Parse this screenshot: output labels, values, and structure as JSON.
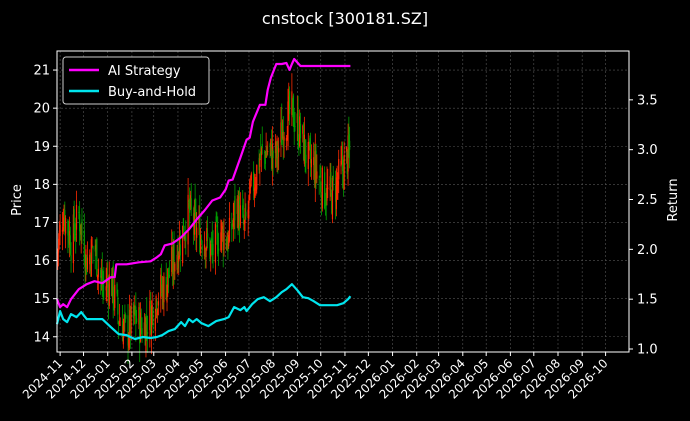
{
  "chart_data": {
    "type": "line",
    "title": "cnstock [300181.SZ]",
    "ylabel_left": "Price",
    "ylabel_right": "Return",
    "grid": true,
    "legend_position": "top-left",
    "xlim": [
      "2024-10-28",
      "2026-10-31"
    ],
    "ylim_left": [
      13.6,
      21.5
    ],
    "ylim_right": [
      0.97,
      3.99
    ],
    "x_ticks": [
      "2024-11",
      "2024-12",
      "2025-01",
      "2025-02",
      "2025-03",
      "2025-04",
      "2025-05",
      "2025-06",
      "2025-07",
      "2025-08",
      "2025-09",
      "2025-10",
      "2025-11",
      "2025-12",
      "2026-01",
      "2026-02",
      "2026-03",
      "2026-04",
      "2026-05",
      "2026-06",
      "2026-07",
      "2026-08",
      "2026-09",
      "2026-10"
    ],
    "y_ticks_left": [
      14,
      15,
      16,
      17,
      18,
      19,
      20,
      21
    ],
    "y_ticks_right": [
      1.0,
      1.5,
      2.0,
      2.5,
      3.0,
      3.5
    ],
    "colors": {
      "up": "#ff2a00",
      "down": "#00a000",
      "ai": "#ff00ff",
      "bh": "#00e5ee",
      "grid": "#555555",
      "axis": "#ffffff"
    },
    "series": [
      {
        "name": "AI Strategy",
        "axis": "right",
        "color": "#ff00ff",
        "x": [
          "2024-10-28",
          "2024-11-01",
          "2024-11-05",
          "2024-11-10",
          "2024-11-15",
          "2024-11-25",
          "2024-12-05",
          "2024-12-15",
          "2024-12-25",
          "2025-01-05",
          "2025-01-10",
          "2025-01-12",
          "2025-01-25",
          "2025-02-10",
          "2025-02-25",
          "2025-03-05",
          "2025-03-10",
          "2025-03-15",
          "2025-03-25",
          "2025-04-05",
          "2025-04-15",
          "2025-04-25",
          "2025-05-05",
          "2025-05-15",
          "2025-05-25",
          "2025-06-01",
          "2025-06-05",
          "2025-06-10",
          "2025-06-20",
          "2025-06-28",
          "2025-07-02",
          "2025-07-06",
          "2025-07-15",
          "2025-07-22",
          "2025-07-25",
          "2025-07-29",
          "2025-08-05",
          "2025-08-12",
          "2025-08-18",
          "2025-08-22",
          "2025-08-25",
          "2025-08-28",
          "2025-09-05",
          "2025-09-20",
          "2025-10-10",
          "2025-11-08"
        ],
        "y": [
          1.5,
          1.42,
          1.45,
          1.42,
          1.5,
          1.6,
          1.65,
          1.68,
          1.66,
          1.72,
          1.72,
          1.85,
          1.85,
          1.87,
          1.88,
          1.92,
          1.95,
          2.04,
          2.06,
          2.12,
          2.2,
          2.3,
          2.39,
          2.49,
          2.52,
          2.6,
          2.69,
          2.7,
          2.92,
          3.1,
          3.12,
          3.28,
          3.45,
          3.45,
          3.6,
          3.72,
          3.86,
          3.86,
          3.87,
          3.8,
          3.86,
          3.91,
          3.84,
          3.84,
          3.84,
          3.84
        ]
      },
      {
        "name": "Buy-and-Hold",
        "axis": "right",
        "color": "#00e5ee",
        "x": [
          "2024-10-28",
          "2024-11-01",
          "2024-11-05",
          "2024-11-10",
          "2024-11-15",
          "2024-11-22",
          "2024-11-28",
          "2024-12-05",
          "2024-12-15",
          "2024-12-25",
          "2025-01-05",
          "2025-01-15",
          "2025-01-25",
          "2025-01-30",
          "2025-02-05",
          "2025-02-15",
          "2025-02-25",
          "2025-03-05",
          "2025-03-12",
          "2025-03-20",
          "2025-03-28",
          "2025-04-05",
          "2025-04-10",
          "2025-04-15",
          "2025-04-20",
          "2025-04-25",
          "2025-05-01",
          "2025-05-10",
          "2025-05-20",
          "2025-05-30",
          "2025-06-05",
          "2025-06-12",
          "2025-06-20",
          "2025-06-25",
          "2025-06-28",
          "2025-07-05",
          "2025-07-12",
          "2025-07-20",
          "2025-07-28",
          "2025-08-05",
          "2025-08-12",
          "2025-08-18",
          "2025-08-25",
          "2025-09-01",
          "2025-09-08",
          "2025-09-15",
          "2025-09-22",
          "2025-09-30",
          "2025-10-08",
          "2025-10-15",
          "2025-10-22",
          "2025-10-30",
          "2025-11-05",
          "2025-11-08"
        ],
        "y": [
          1.25,
          1.38,
          1.3,
          1.27,
          1.35,
          1.32,
          1.37,
          1.3,
          1.3,
          1.3,
          1.22,
          1.15,
          1.14,
          1.12,
          1.1,
          1.12,
          1.11,
          1.12,
          1.14,
          1.18,
          1.2,
          1.27,
          1.23,
          1.3,
          1.27,
          1.3,
          1.26,
          1.23,
          1.28,
          1.3,
          1.32,
          1.42,
          1.39,
          1.42,
          1.38,
          1.45,
          1.5,
          1.52,
          1.48,
          1.52,
          1.57,
          1.6,
          1.65,
          1.59,
          1.52,
          1.51,
          1.48,
          1.44,
          1.44,
          1.44,
          1.44,
          1.46,
          1.5,
          1.53
        ]
      }
    ],
    "candles": {
      "axis": "left",
      "segments": [
        {
          "x": [
            "2024-10-28",
            "2024-11-05",
            "2024-11-15",
            "2024-11-25",
            "2024-12-05",
            "2024-12-15",
            "2024-12-25",
            "2025-01-05",
            "2025-01-15",
            "2025-01-25",
            "2025-02-05",
            "2025-02-15",
            "2025-02-25",
            "2025-03-05",
            "2025-03-15",
            "2025-03-25",
            "2025-04-05",
            "2025-04-15",
            "2025-04-25",
            "2025-05-05",
            "2025-05-15",
            "2025-05-25",
            "2025-06-05",
            "2025-06-15",
            "2025-06-25",
            "2025-07-05",
            "2025-07-15",
            "2025-07-25",
            "2025-08-05",
            "2025-08-15",
            "2025-08-25",
            "2025-09-05",
            "2025-09-15",
            "2025-09-25",
            "2025-10-05",
            "2025-10-15",
            "2025-10-25",
            "2025-11-08"
          ],
          "close": [
            16.2,
            17.3,
            16.5,
            17.2,
            16.0,
            16.4,
            15.3,
            15.5,
            14.5,
            14.1,
            14.5,
            14.2,
            14.6,
            15.1,
            15.3,
            15.9,
            16.6,
            17.3,
            16.8,
            16.6,
            16.2,
            16.8,
            16.5,
            17.5,
            16.8,
            17.9,
            18.7,
            18.9,
            18.7,
            19.6,
            19.9,
            19.3,
            18.6,
            18.4,
            17.8,
            17.7,
            18.2,
            18.9
          ]
        }
      ]
    }
  }
}
